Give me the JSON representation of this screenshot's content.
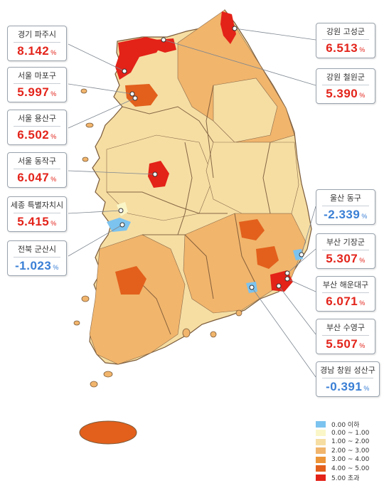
{
  "regions": [
    {
      "id": "gyeonggi-paju",
      "name": "경기 파주시",
      "value": "8.142",
      "unit": "%",
      "sign": "pos"
    },
    {
      "id": "seoul-mapo",
      "name": "서울 마포구",
      "value": "5.997",
      "unit": "%",
      "sign": "pos"
    },
    {
      "id": "seoul-yongsan",
      "name": "서울 용산구",
      "value": "6.502",
      "unit": "%",
      "sign": "pos"
    },
    {
      "id": "seoul-dongjak",
      "name": "서울 동작구",
      "value": "6.047",
      "unit": "%",
      "sign": "pos"
    },
    {
      "id": "sejong",
      "name": "세종 특별자치시",
      "value": "5.415",
      "unit": "%",
      "sign": "pos"
    },
    {
      "id": "jeonbuk-gunsan",
      "name": "전북 군산시",
      "value": "-1.023",
      "unit": "%",
      "sign": "neg"
    },
    {
      "id": "gangwon-goseong",
      "name": "강원 고성군",
      "value": "6.513",
      "unit": "%",
      "sign": "pos"
    },
    {
      "id": "gangwon-cheorwon",
      "name": "강원 철원군",
      "value": "5.390",
      "unit": "%",
      "sign": "pos"
    },
    {
      "id": "ulsan-dong",
      "name": "울산 동구",
      "value": "-2.339",
      "unit": "%",
      "sign": "neg"
    },
    {
      "id": "busan-gijang",
      "name": "부산 기장군",
      "value": "5.307",
      "unit": "%",
      "sign": "pos"
    },
    {
      "id": "busan-haeundae",
      "name": "부산 해운대구",
      "value": "6.071",
      "unit": "%",
      "sign": "pos"
    },
    {
      "id": "busan-suyeong",
      "name": "부산 수영구",
      "value": "5.507",
      "unit": "%",
      "sign": "pos"
    },
    {
      "id": "gyeongnam-changwon-seongsan",
      "name": "경남 창원 성산구",
      "value": "-0.391",
      "unit": "%",
      "sign": "neg"
    }
  ],
  "legend": [
    {
      "label": "0.00 이하",
      "color": "#7cc3ef"
    },
    {
      "label": "0.00 ~ 1.00",
      "color": "#fbf6c8"
    },
    {
      "label": "1.00 ~ 2.00",
      "color": "#f6dea3"
    },
    {
      "label": "2.00 ~ 3.00",
      "color": "#f1b56c"
    },
    {
      "label": "3.00 ~ 4.00",
      "color": "#ec9538"
    },
    {
      "label": "4.00 ~ 5.00",
      "color": "#e2601c"
    },
    {
      "label": "5.00 초과",
      "color": "#e32218"
    }
  ]
}
